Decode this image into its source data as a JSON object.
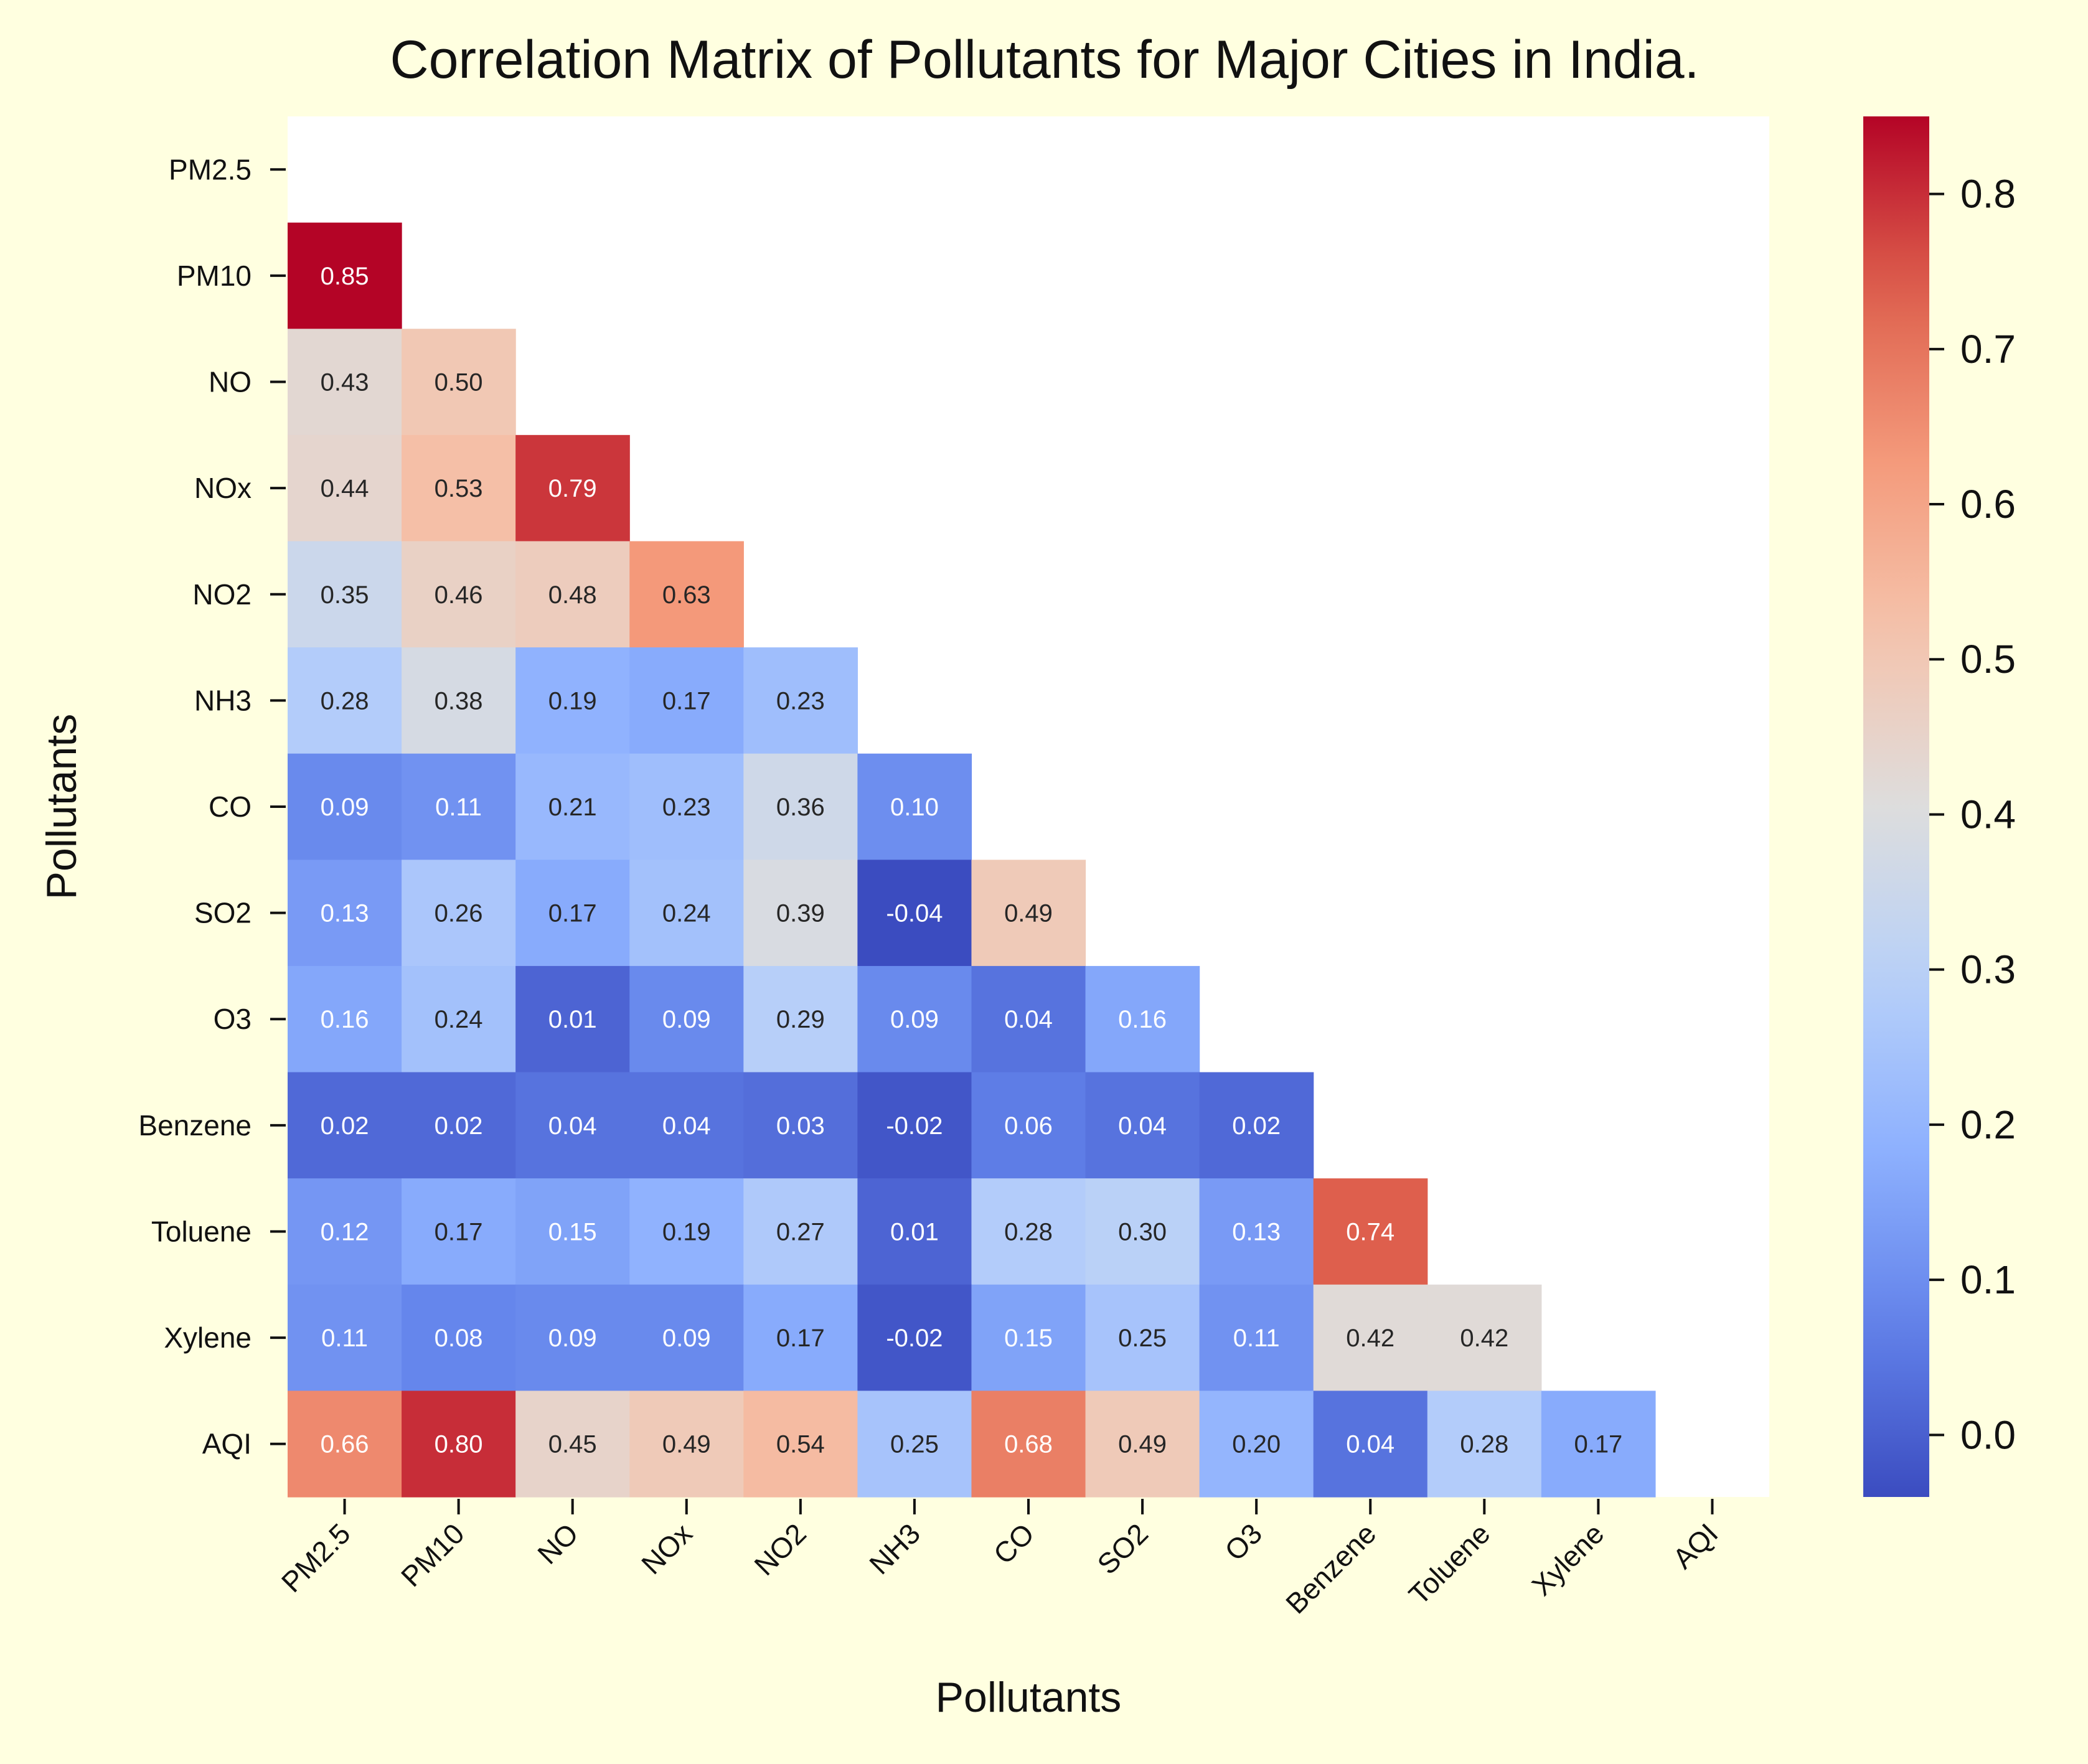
{
  "chart_data": {
    "type": "heatmap",
    "title": "Correlation Matrix of Pollutants for Major Cities in India.",
    "xlabel": "Pollutants",
    "ylabel": "Pollutants",
    "variables": [
      "PM2.5",
      "PM10",
      "NO",
      "NOx",
      "NO2",
      "NH3",
      "CO",
      "SO2",
      "O3",
      "Benzene",
      "Toluene",
      "Xylene",
      "AQI"
    ],
    "mask": "upper triangle including diagonal (not drawn)",
    "values": [
      [
        null,
        null,
        null,
        null,
        null,
        null,
        null,
        null,
        null,
        null,
        null,
        null,
        null
      ],
      [
        0.85,
        null,
        null,
        null,
        null,
        null,
        null,
        null,
        null,
        null,
        null,
        null,
        null
      ],
      [
        0.43,
        0.5,
        null,
        null,
        null,
        null,
        null,
        null,
        null,
        null,
        null,
        null,
        null
      ],
      [
        0.44,
        0.53,
        0.79,
        null,
        null,
        null,
        null,
        null,
        null,
        null,
        null,
        null,
        null
      ],
      [
        0.35,
        0.46,
        0.48,
        0.63,
        null,
        null,
        null,
        null,
        null,
        null,
        null,
        null,
        null
      ],
      [
        0.28,
        0.38,
        0.19,
        0.17,
        0.23,
        null,
        null,
        null,
        null,
        null,
        null,
        null,
        null
      ],
      [
        0.09,
        0.11,
        0.21,
        0.23,
        0.36,
        0.1,
        null,
        null,
        null,
        null,
        null,
        null,
        null
      ],
      [
        0.13,
        0.26,
        0.17,
        0.24,
        0.39,
        -0.04,
        0.49,
        null,
        null,
        null,
        null,
        null,
        null
      ],
      [
        0.16,
        0.24,
        0.01,
        0.09,
        0.29,
        0.09,
        0.04,
        0.16,
        null,
        null,
        null,
        null,
        null
      ],
      [
        0.02,
        0.02,
        0.04,
        0.04,
        0.03,
        -0.02,
        0.06,
        0.04,
        0.02,
        null,
        null,
        null,
        null
      ],
      [
        0.12,
        0.17,
        0.15,
        0.19,
        0.27,
        0.01,
        0.28,
        0.3,
        0.13,
        0.74,
        null,
        null,
        null
      ],
      [
        0.11,
        0.08,
        0.09,
        0.09,
        0.17,
        -0.02,
        0.15,
        0.25,
        0.11,
        0.42,
        0.42,
        null,
        null
      ],
      [
        0.66,
        0.8,
        0.45,
        0.49,
        0.54,
        0.25,
        0.68,
        0.49,
        0.2,
        0.04,
        0.28,
        0.17,
        null
      ]
    ],
    "value_format": "2 decimals",
    "colormap": "coolwarm",
    "vmin": -0.04,
    "vmax": 0.85,
    "colorbar": {
      "ticks": [
        0.0,
        0.1,
        0.2,
        0.3,
        0.4,
        0.5,
        0.6,
        0.7,
        0.8
      ],
      "tick_labels": [
        "0.0",
        "0.1",
        "0.2",
        "0.3",
        "0.4",
        "0.5",
        "0.6",
        "0.7",
        "0.8"
      ]
    },
    "x_tick_rotation": "45 degrees"
  },
  "colors": {
    "page_background": "#ffffe0",
    "plot_background": "#ffffff",
    "text": "#111111",
    "cell_text_dark": "#262626",
    "cell_text_light": "#ffffff"
  }
}
